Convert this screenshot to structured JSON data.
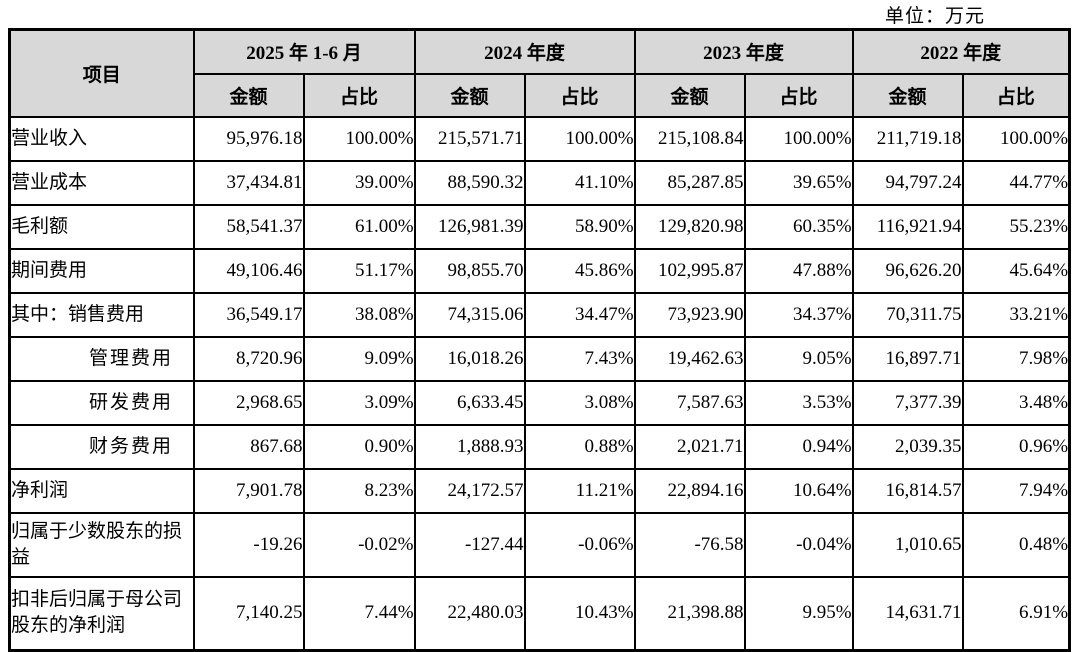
{
  "unit_label": "单位：万元",
  "colors": {
    "header_bg": "#d8d8d8",
    "border": "#000000",
    "text": "#000000"
  },
  "table": {
    "item_header": "项目",
    "periods": [
      {
        "label": "2025 年 1-6 月",
        "amount_header": "金额",
        "ratio_header": "占比"
      },
      {
        "label": "2024 年度",
        "amount_header": "金额",
        "ratio_header": "占比"
      },
      {
        "label": "2023 年度",
        "amount_header": "金额",
        "ratio_header": "占比"
      },
      {
        "label": "2022 年度",
        "amount_header": "金额",
        "ratio_header": "占比"
      }
    ],
    "rows": [
      {
        "item": "营业收入",
        "indent": false,
        "lines": 1,
        "values": [
          "95,976.18",
          "100.00%",
          "215,571.71",
          "100.00%",
          "215,108.84",
          "100.00%",
          "211,719.18",
          "100.00%"
        ]
      },
      {
        "item": "营业成本",
        "indent": false,
        "lines": 1,
        "values": [
          "37,434.81",
          "39.00%",
          "88,590.32",
          "41.10%",
          "85,287.85",
          "39.65%",
          "94,797.24",
          "44.77%"
        ]
      },
      {
        "item": "毛利额",
        "indent": false,
        "lines": 1,
        "values": [
          "58,541.37",
          "61.00%",
          "126,981.39",
          "58.90%",
          "129,820.98",
          "60.35%",
          "116,921.94",
          "55.23%"
        ]
      },
      {
        "item": "期间费用",
        "indent": false,
        "lines": 1,
        "values": [
          "49,106.46",
          "51.17%",
          "98,855.70",
          "45.86%",
          "102,995.87",
          "47.88%",
          "96,626.20",
          "45.64%"
        ]
      },
      {
        "item": "其中：销售费用",
        "indent": false,
        "lines": 1,
        "values": [
          "36,549.17",
          "38.08%",
          "74,315.06",
          "34.47%",
          "73,923.90",
          "34.37%",
          "70,311.75",
          "33.21%"
        ]
      },
      {
        "item": "管理费用",
        "indent": true,
        "lines": 1,
        "values": [
          "8,720.96",
          "9.09%",
          "16,018.26",
          "7.43%",
          "19,462.63",
          "9.05%",
          "16,897.71",
          "7.98%"
        ]
      },
      {
        "item": "研发费用",
        "indent": true,
        "lines": 1,
        "values": [
          "2,968.65",
          "3.09%",
          "6,633.45",
          "3.08%",
          "7,587.63",
          "3.53%",
          "7,377.39",
          "3.48%"
        ]
      },
      {
        "item": "财务费用",
        "indent": true,
        "lines": 1,
        "values": [
          "867.68",
          "0.90%",
          "1,888.93",
          "0.88%",
          "2,021.71",
          "0.94%",
          "2,039.35",
          "0.96%"
        ]
      },
      {
        "item": "净利润",
        "indent": false,
        "lines": 1,
        "values": [
          "7,901.78",
          "8.23%",
          "24,172.57",
          "11.21%",
          "22,894.16",
          "10.64%",
          "16,814.57",
          "7.94%"
        ]
      },
      {
        "item": "归属于少数股东的损益",
        "indent": false,
        "lines": 2,
        "values": [
          "-19.26",
          "-0.02%",
          "-127.44",
          "-0.06%",
          "-76.58",
          "-0.04%",
          "1,010.65",
          "0.48%"
        ]
      },
      {
        "item": "扣非后归属于母公司股东的净利润",
        "indent": false,
        "lines": 3,
        "values": [
          "7,140.25",
          "7.44%",
          "22,480.03",
          "10.43%",
          "21,398.88",
          "9.95%",
          "14,631.71",
          "6.91%"
        ]
      }
    ]
  }
}
